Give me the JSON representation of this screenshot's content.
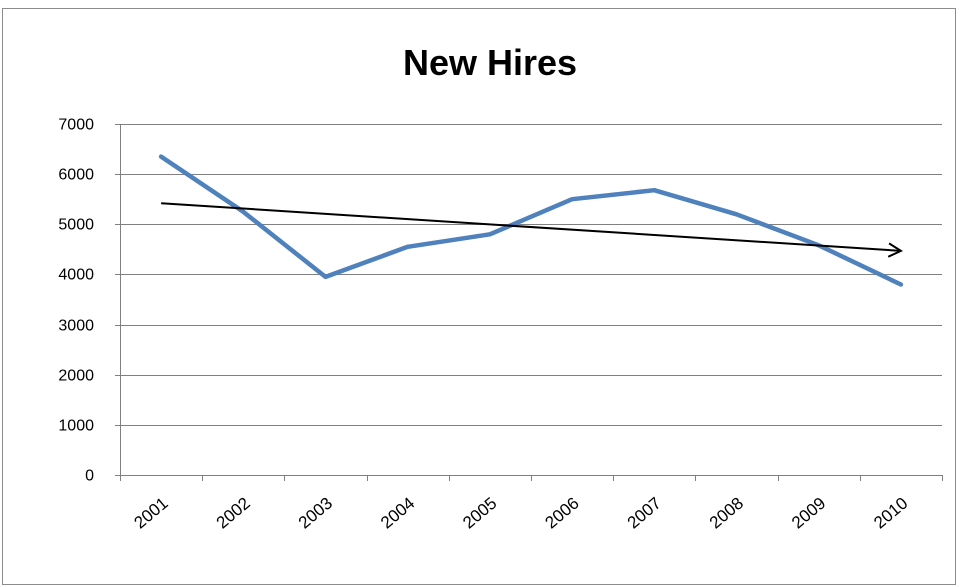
{
  "chart_data": {
    "type": "line",
    "title": "New Hires",
    "xlabel": "",
    "ylabel": "",
    "categories": [
      "2001",
      "2002",
      "2003",
      "2004",
      "2005",
      "2006",
      "2007",
      "2008",
      "2009",
      "2010"
    ],
    "series": [
      {
        "values": [
          6350,
          5250,
          3950,
          4550,
          4800,
          5500,
          5680,
          5200,
          4580,
          3800
        ],
        "color": "#4f81bd"
      }
    ],
    "trend_arrow": {
      "start": {
        "x": "2001",
        "y": 5420
      },
      "end": {
        "x": "2010",
        "y": 4470
      },
      "color": "#000000"
    },
    "ylim": [
      0,
      7000
    ],
    "y_ticks": [
      "0",
      "1000",
      "2000",
      "3000",
      "4000",
      "5000",
      "6000",
      "7000"
    ],
    "grid": true,
    "legend": "none",
    "axis_color": "#808080",
    "grid_color": "#808080"
  }
}
